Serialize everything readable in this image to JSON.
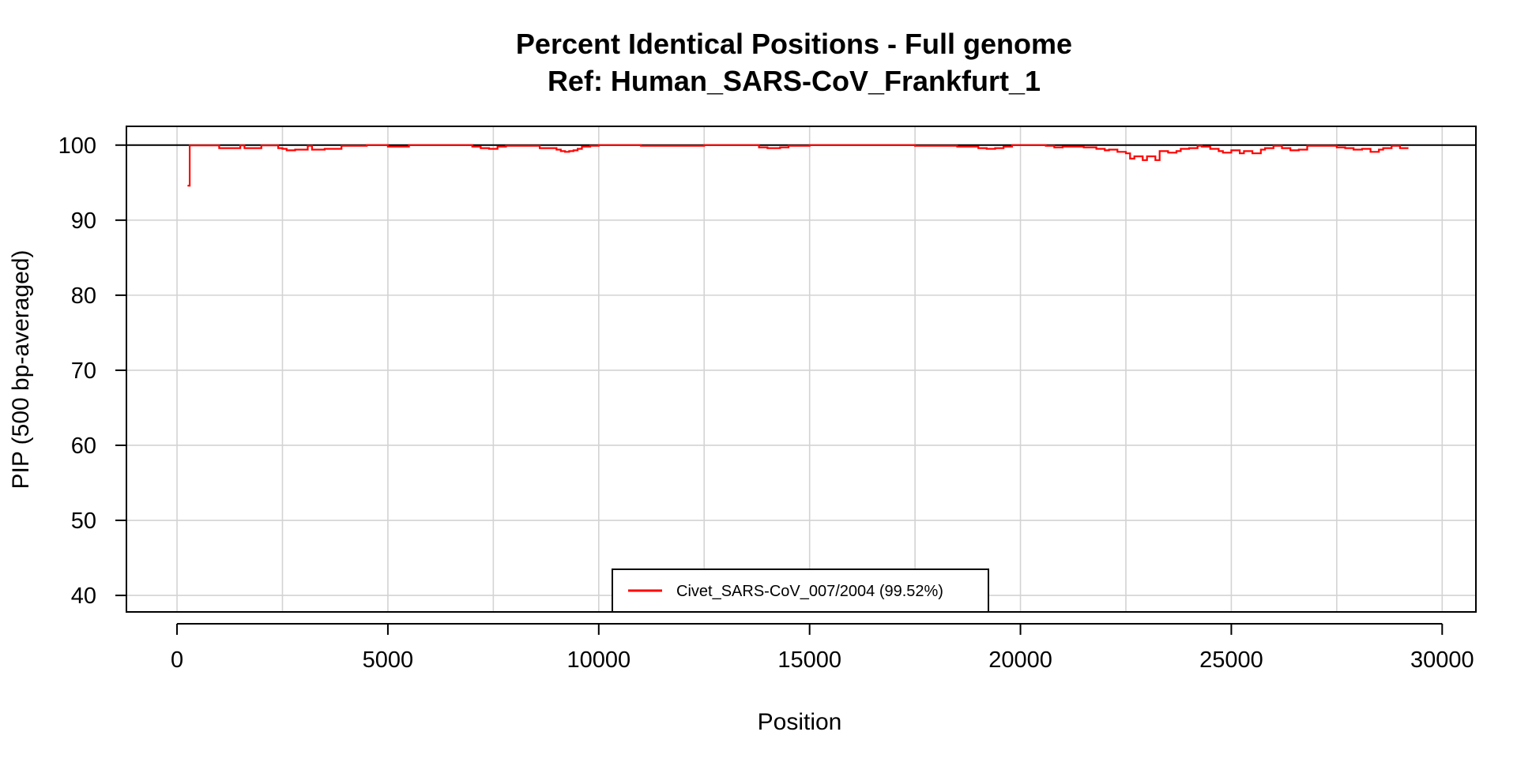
{
  "colors": {
    "series": "#ff0000",
    "grid": "#d3d3d3",
    "axis": "#000000",
    "background": "#ffffff"
  },
  "chart_data": {
    "type": "line",
    "title": "Percent Identical Positions - Full genome",
    "subtitle": "Ref: Human_SARS-CoV_Frankfurt_1",
    "xlabel": "Position",
    "ylabel": "PIP (500 bp-averaged)",
    "xlim": [
      -1200,
      30800
    ],
    "ylim": [
      37.8,
      102.5
    ],
    "xticks": [
      0,
      5000,
      10000,
      15000,
      20000,
      25000,
      30000
    ],
    "yticks": [
      40,
      50,
      60,
      70,
      80,
      90,
      100
    ],
    "xtick_labels": [
      "0",
      "5000",
      "10000",
      "15000",
      "20000",
      "25000",
      "30000"
    ],
    "ytick_labels": [
      "40",
      "50",
      "60",
      "70",
      "80",
      "90",
      "100"
    ],
    "grid": true,
    "vertical_grid_every": 2500,
    "reference_line": 100,
    "legend_position": "bottom-center",
    "series": [
      {
        "name": "Civet_SARS-CoV_007/2004 (99.52%)",
        "x": [
          250,
          300,
          400,
          1000,
          1100,
          1500,
          1600,
          1900,
          2000,
          2400,
          2500,
          2600,
          2800,
          3100,
          3200,
          3400,
          3500,
          3900,
          4000,
          4500,
          5000,
          5500,
          6000,
          6500,
          7000,
          7200,
          7400,
          7600,
          7800,
          8000,
          8600,
          8700,
          9000,
          9100,
          9200,
          9300,
          9400,
          9500,
          9600,
          9800,
          10000,
          11000,
          11500,
          12000,
          12500,
          13000,
          13800,
          14000,
          14300,
          14500,
          15000,
          16000,
          17000,
          17500,
          17800,
          18200,
          18500,
          19000,
          19200,
          19400,
          19600,
          19800,
          20000,
          20600,
          20800,
          21000,
          21500,
          21800,
          22000,
          22100,
          22300,
          22500,
          22600,
          22700,
          22900,
          23000,
          23100,
          23200,
          23300,
          23500,
          23700,
          23800,
          24000,
          24200,
          24300,
          24500,
          24700,
          24800,
          25000,
          25200,
          25300,
          25500,
          25700,
          25800,
          26000,
          26200,
          26400,
          26600,
          26800,
          27000,
          27500,
          27700,
          27900,
          28100,
          28300,
          28500,
          28600,
          28800,
          29000,
          29200
        ],
        "values": [
          94.6,
          99.95,
          99.95,
          99.6,
          99.6,
          99.95,
          99.6,
          99.6,
          99.95,
          99.6,
          99.5,
          99.3,
          99.4,
          99.9,
          99.4,
          99.4,
          99.5,
          99.9,
          99.9,
          100,
          99.8,
          100,
          100,
          100,
          99.8,
          99.6,
          99.5,
          99.8,
          99.9,
          99.9,
          99.6,
          99.6,
          99.4,
          99.2,
          99.1,
          99.2,
          99.3,
          99.5,
          99.8,
          99.9,
          100,
          99.9,
          99.9,
          99.9,
          100,
          100,
          99.7,
          99.6,
          99.7,
          99.9,
          100,
          100,
          100,
          99.9,
          99.9,
          99.9,
          99.8,
          99.6,
          99.5,
          99.6,
          99.8,
          100,
          100,
          99.9,
          99.7,
          99.8,
          99.7,
          99.5,
          99.3,
          99.4,
          99.1,
          98.9,
          98.2,
          98.5,
          98.0,
          98.5,
          98.5,
          98.0,
          99.2,
          99.0,
          99.2,
          99.5,
          99.6,
          99.9,
          99.8,
          99.5,
          99.2,
          99.0,
          99.3,
          98.9,
          99.2,
          98.9,
          99.4,
          99.6,
          99.9,
          99.6,
          99.3,
          99.4,
          99.9,
          99.9,
          99.7,
          99.6,
          99.4,
          99.5,
          99.1,
          99.4,
          99.6,
          99.9,
          99.6,
          99.6
        ]
      }
    ]
  }
}
